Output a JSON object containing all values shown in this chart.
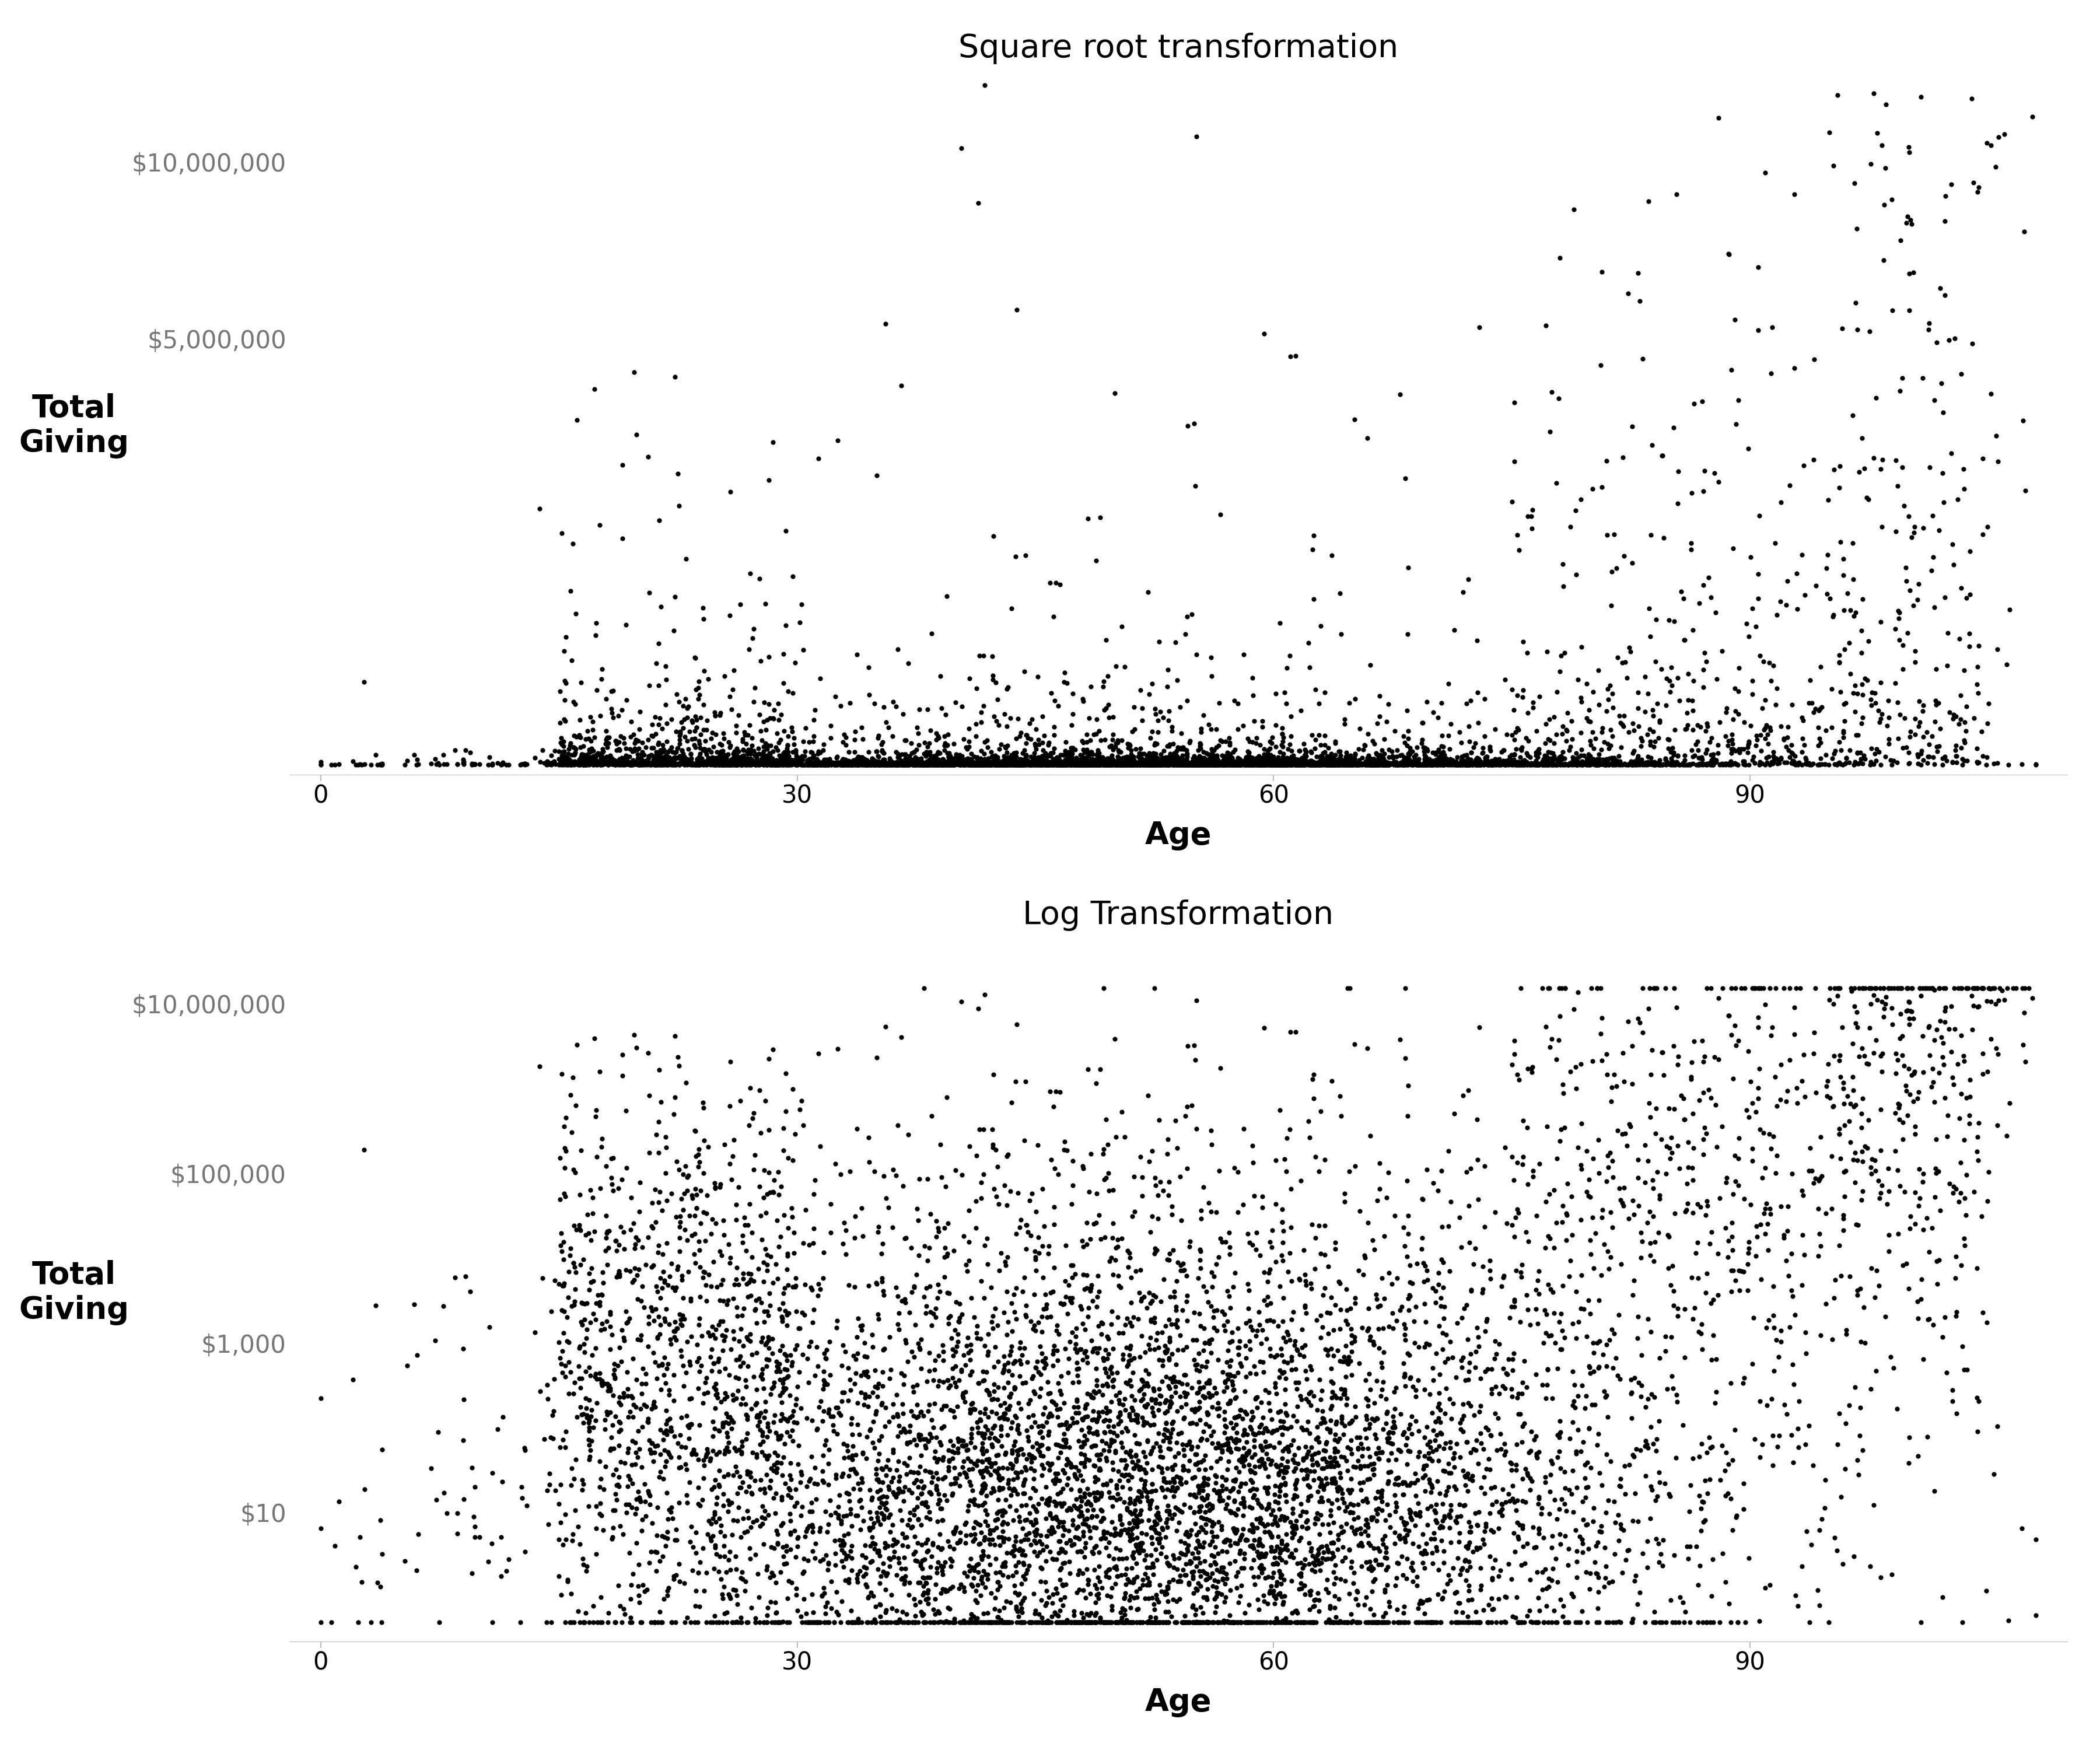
{
  "title_top": "Square root transformation",
  "title_bottom": "Log Transformation",
  "ylabel": "Total\nGiving",
  "xlabel": "Age",
  "point_color": "#000000",
  "point_alpha": 1.0,
  "point_size": 35,
  "background_color": "#ffffff",
  "sqrt_ytick_vals": [
    0,
    5000000,
    10000000
  ],
  "sqrt_ytick_labels": [
    "",
    "$5,000,000",
    "$10,000,000"
  ],
  "log_ytick_vals": [
    1,
    10,
    1000,
    100000,
    10000000
  ],
  "log_ytick_labels": [
    "",
    "$10",
    "$1,000",
    "$100,000",
    "$10,000,000"
  ],
  "xticks": [
    0,
    30,
    60,
    90
  ],
  "n_points": 8000,
  "seed": 42,
  "ylabel_fontsize": 38,
  "xlabel_fontsize": 38,
  "title_fontsize": 40,
  "tick_fontsize": 30,
  "tick_color": "#777777"
}
